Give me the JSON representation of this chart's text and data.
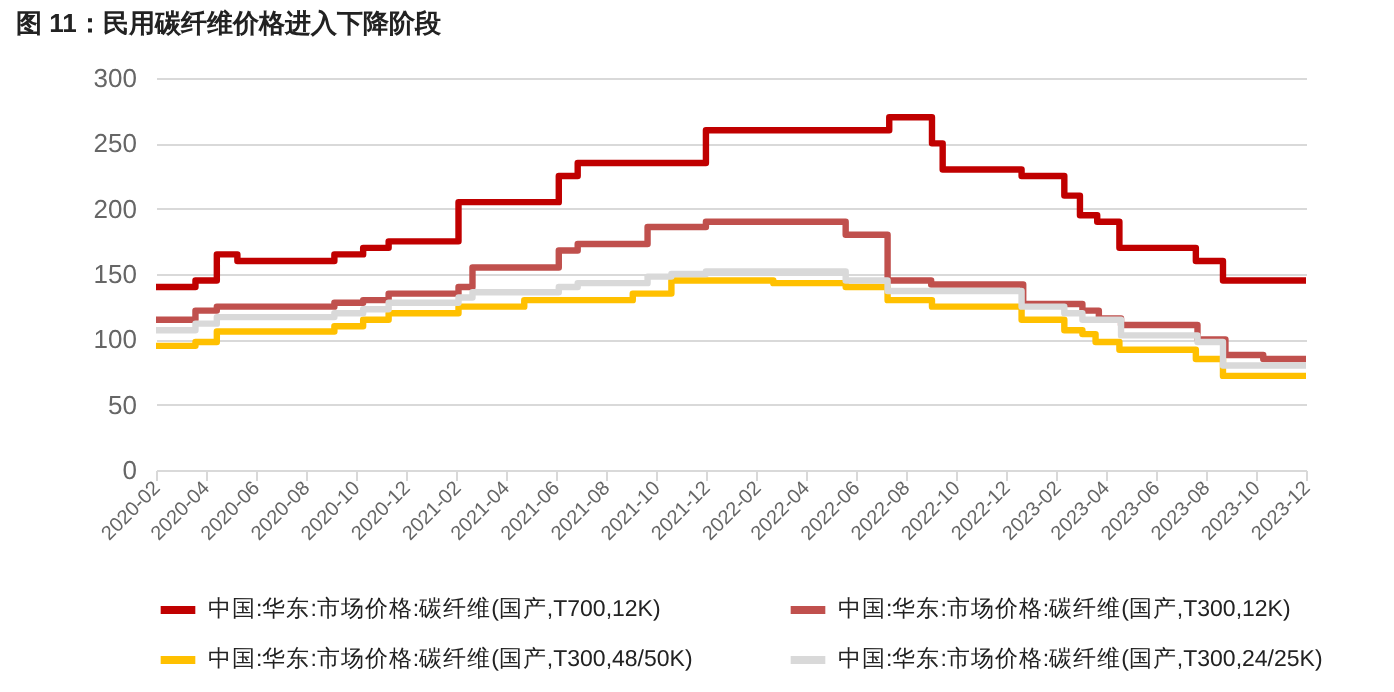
{
  "chart_data": {
    "type": "step",
    "title": "图 11：民用碳纤维价格进入下降阶段",
    "xlim": [
      "2020-02",
      "2023-12"
    ],
    "xticks": [
      "2020-02",
      "2020-04",
      "2020-06",
      "2020-08",
      "2020-10",
      "2020-12",
      "2021-02",
      "2021-04",
      "2021-06",
      "2021-08",
      "2021-10",
      "2021-12",
      "2022-02",
      "2022-04",
      "2022-06",
      "2022-08",
      "2022-10",
      "2022-12",
      "2023-02",
      "2023-04",
      "2023-06",
      "2023-08",
      "2023-10",
      "2023-12"
    ],
    "ylim": [
      0,
      300
    ],
    "yticks": [
      0,
      50,
      100,
      150,
      200,
      250,
      300
    ],
    "grid": "y",
    "legend": "bottom",
    "line_style": "solid",
    "series": [
      {
        "name": "中国:华东:市场价格:碳纤维(国产,T700,12K)",
        "color": "#c00000",
        "x": [
          "2020-02-01",
          "2020-03-20",
          "2020-04-15",
          "2020-05-10",
          "2020-09-05",
          "2020-10-10",
          "2020-11-10",
          "2021-02-03",
          "2021-06-05",
          "2021-06-28",
          "2021-12-01",
          "2022-07-12",
          "2022-09-02",
          "2022-09-15",
          "2022-12-20",
          "2023-02-10",
          "2023-03-01",
          "2023-03-22",
          "2023-04-18",
          "2023-07-20",
          "2023-08-22",
          "2023-12-01"
        ],
        "values": [
          140,
          145,
          165,
          160,
          165,
          170,
          175,
          205,
          225,
          235,
          260,
          270,
          250,
          230,
          225,
          210,
          195,
          190,
          170,
          160,
          145,
          145
        ]
      },
      {
        "name": "中国:华东:市场价格:碳纤维(国产,T300,12K)",
        "color": "#c0504d",
        "x": [
          "2020-02-01",
          "2020-03-20",
          "2020-04-15",
          "2020-09-05",
          "2020-10-10",
          "2020-11-10",
          "2021-02-03",
          "2021-02-20",
          "2021-06-05",
          "2021-06-28",
          "2021-09-21",
          "2021-12-01",
          "2022-05-20",
          "2022-07-10",
          "2022-09-01",
          "2022-12-22",
          "2023-03-04",
          "2023-03-24",
          "2023-04-20",
          "2023-07-22",
          "2023-08-25",
          "2023-10-10",
          "2023-12-01"
        ],
        "values": [
          115,
          122,
          125,
          128,
          130,
          135,
          140,
          155,
          168,
          173,
          186,
          190,
          180,
          145,
          142,
          127,
          122,
          116,
          111,
          100,
          88,
          85,
          85
        ]
      },
      {
        "name": "中国:华东:市场价格:碳纤维(国产,T300,48/50K)",
        "color": "#ffc000",
        "x": [
          "2020-02-01",
          "2020-03-20",
          "2020-04-15",
          "2020-09-05",
          "2020-10-10",
          "2020-11-10",
          "2021-02-03",
          "2021-04-24",
          "2021-09-03",
          "2021-10-20",
          "2022-02-21",
          "2022-05-20",
          "2022-07-10",
          "2022-09-02",
          "2022-12-20",
          "2023-02-10",
          "2023-03-04",
          "2023-03-20",
          "2023-04-18",
          "2023-07-20",
          "2023-08-22",
          "2023-12-01"
        ],
        "values": [
          95,
          98,
          106,
          110,
          115,
          120,
          125,
          130,
          135,
          145,
          143,
          140,
          130,
          125,
          115,
          107,
          104,
          98,
          92,
          85,
          72,
          72
        ]
      },
      {
        "name": "中国:华东:市场价格:碳纤维(国产,T300,24/25K)",
        "color": "#d9d9d9",
        "x": [
          "2020-02-01",
          "2020-03-20",
          "2020-04-15",
          "2020-09-05",
          "2020-10-10",
          "2020-11-10",
          "2021-02-03",
          "2021-02-20",
          "2021-06-05",
          "2021-06-28",
          "2021-09-21",
          "2021-10-20",
          "2021-12-01",
          "2022-05-20",
          "2022-07-10",
          "2022-12-20",
          "2023-02-10",
          "2023-03-04",
          "2023-04-20",
          "2023-07-22",
          "2023-08-22",
          "2023-12-01"
        ],
        "values": [
          107,
          112,
          117,
          120,
          123,
          128,
          132,
          136,
          140,
          143,
          148,
          150,
          152,
          145,
          137,
          125,
          120,
          115,
          103,
          98,
          80,
          80
        ]
      }
    ]
  }
}
